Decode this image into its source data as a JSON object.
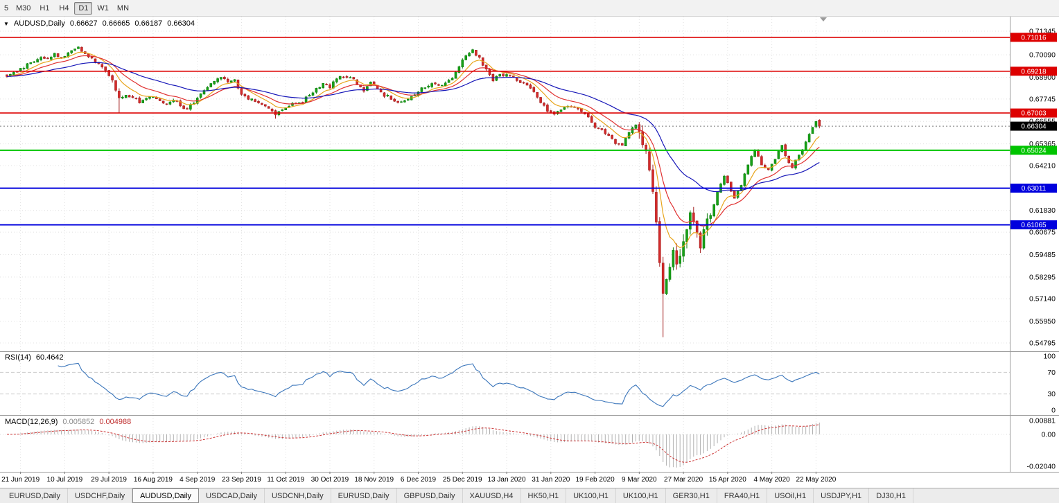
{
  "toolbar": {
    "buttons": [
      "5",
      "M30",
      "H1",
      "H4",
      "D1",
      "W1",
      "MN"
    ],
    "active": "D1"
  },
  "header": {
    "marker": "▼",
    "symbol_period": "AUDUSD,Daily",
    "open": "0.66627",
    "high": "0.66665",
    "low": "0.66187",
    "close": "0.66304"
  },
  "chart_data": {
    "type": "candlestick",
    "symbol": "AUDUSD",
    "timeframe": "Daily",
    "visible_ohlc": {
      "open": 0.66627,
      "high": 0.66665,
      "low": 0.66187,
      "close": 0.66304
    },
    "current_price": 0.66304,
    "price_range": {
      "top": 0.71345,
      "bottom": 0.54795
    },
    "bar_count": 240,
    "bar_spacing_px": 4.905,
    "y_axis_labels": [
      "0.71345",
      "0.70090",
      "0.68900",
      "0.67745",
      "0.66555",
      "0.65365",
      "0.64210",
      "0.61830",
      "0.60675",
      "0.59485",
      "0.58295",
      "0.57140",
      "0.55950",
      "0.54795"
    ],
    "x_axis_dates": [
      "21 Jun 2019",
      "10 Jul 2019",
      "29 Jul 2019",
      "16 Aug 2019",
      "4 Sep 2019",
      "23 Sep 2019",
      "11 Oct 2019",
      "30 Oct 2019",
      "18 Nov 2019",
      "6 Dec 2019",
      "25 Dec 2019",
      "13 Jan 2020",
      "31 Jan 2020",
      "19 Feb 2020",
      "9 Mar 2020",
      "27 Mar 2020",
      "15 Apr 2020",
      "4 May 2020",
      "22 May 2020"
    ],
    "hlines": [
      {
        "price": 0.71016,
        "color": "#dd0000",
        "width": 1.6
      },
      {
        "price": 0.69218,
        "color": "#dd0000",
        "width": 1.6
      },
      {
        "price": 0.67003,
        "color": "#dd0000",
        "width": 1.6
      },
      {
        "price": 0.65024,
        "color": "#00c400",
        "width": 2
      },
      {
        "price": 0.63011,
        "color": "#0000dd",
        "width": 2
      },
      {
        "price": 0.61065,
        "color": "#0000dd",
        "width": 2
      }
    ],
    "badges": [
      {
        "text": "0.71016",
        "color": "#dd0000"
      },
      {
        "text": "0.69218",
        "color": "#dd0000"
      },
      {
        "text": "0.67003",
        "color": "#dd0000"
      },
      {
        "text": "0.66304",
        "color": "#000000"
      },
      {
        "text": "0.65024",
        "color": "#00c400"
      },
      {
        "text": "0.63011",
        "color": "#0000dd"
      },
      {
        "text": "0.61065",
        "color": "#0000dd"
      }
    ],
    "moving_averages": [
      {
        "period": 8,
        "color": "#e8a51c"
      },
      {
        "period": 16,
        "color": "#e03131"
      },
      {
        "period": 40,
        "color": "#1717b8"
      }
    ],
    "indicators": {
      "rsi": {
        "label": "RSI(14)",
        "display_value": "60.4642",
        "period": 14,
        "levels": [
          100,
          70,
          30,
          0
        ],
        "color": "#3b76bb"
      },
      "macd": {
        "label": "MACD(12,26,9)",
        "display_values": [
          "0.005852",
          "0.004988"
        ],
        "fast": 12,
        "slow": 26,
        "signal": 9,
        "axis_labels": [
          "0.00881",
          "0.00",
          "-0.02040"
        ],
        "hist_color": "#b0b0b0",
        "signal_color": "#cc3333"
      }
    },
    "wick_lows": {
      "33": 0.67,
      "79": 0.667,
      "193": 0.551
    },
    "path_anchors": [
      [
        0,
        0.69
      ],
      [
        4,
        0.693
      ],
      [
        7,
        0.697
      ],
      [
        10,
        0.7
      ],
      [
        12,
        0.6985
      ],
      [
        14,
        0.7015
      ],
      [
        16,
        0.699
      ],
      [
        19,
        0.703
      ],
      [
        21,
        0.7045
      ],
      [
        23,
        0.702
      ],
      [
        25,
        0.6985
      ],
      [
        27,
        0.696
      ],
      [
        29,
        0.6925
      ],
      [
        31,
        0.6875
      ],
      [
        33,
        0.6775
      ],
      [
        35,
        0.6795
      ],
      [
        37,
        0.6785
      ],
      [
        39,
        0.676
      ],
      [
        41,
        0.6775
      ],
      [
        43,
        0.6785
      ],
      [
        45,
        0.6765
      ],
      [
        47,
        0.6755
      ],
      [
        49,
        0.6775
      ],
      [
        51,
        0.674
      ],
      [
        53,
        0.672
      ],
      [
        55,
        0.676
      ],
      [
        57,
        0.68
      ],
      [
        59,
        0.6835
      ],
      [
        61,
        0.6865
      ],
      [
        63,
        0.6885
      ],
      [
        65,
        0.687
      ],
      [
        67,
        0.6875
      ],
      [
        69,
        0.68
      ],
      [
        71,
        0.678
      ],
      [
        73,
        0.676
      ],
      [
        75,
        0.6745
      ],
      [
        77,
        0.672
      ],
      [
        79,
        0.6695
      ],
      [
        81,
        0.6715
      ],
      [
        83,
        0.674
      ],
      [
        85,
        0.6755
      ],
      [
        87,
        0.676
      ],
      [
        89,
        0.68
      ],
      [
        91,
        0.683
      ],
      [
        93,
        0.685
      ],
      [
        95,
        0.684
      ],
      [
        97,
        0.688
      ],
      [
        99,
        0.6895
      ],
      [
        101,
        0.689
      ],
      [
        103,
        0.686
      ],
      [
        105,
        0.682
      ],
      [
        107,
        0.686
      ],
      [
        109,
        0.683
      ],
      [
        111,
        0.6795
      ],
      [
        113,
        0.678
      ],
      [
        115,
        0.676
      ],
      [
        117,
        0.6765
      ],
      [
        119,
        0.6785
      ],
      [
        121,
        0.682
      ],
      [
        123,
        0.684
      ],
      [
        125,
        0.6855
      ],
      [
        127,
        0.684
      ],
      [
        129,
        0.6865
      ],
      [
        131,
        0.6885
      ],
      [
        133,
        0.695
      ],
      [
        135,
        0.7
      ],
      [
        137,
        0.703
      ],
      [
        139,
        0.699
      ],
      [
        141,
        0.693
      ],
      [
        143,
        0.6875
      ],
      [
        145,
        0.69
      ],
      [
        147,
        0.6905
      ],
      [
        149,
        0.689
      ],
      [
        151,
        0.6865
      ],
      [
        153,
        0.6845
      ],
      [
        155,
        0.682
      ],
      [
        157,
        0.676
      ],
      [
        159,
        0.671
      ],
      [
        161,
        0.669
      ],
      [
        163,
        0.6715
      ],
      [
        165,
        0.674
      ],
      [
        167,
        0.6735
      ],
      [
        169,
        0.671
      ],
      [
        171,
        0.668
      ],
      [
        173,
        0.6625
      ],
      [
        175,
        0.6605
      ],
      [
        177,
        0.658
      ],
      [
        179,
        0.6545
      ],
      [
        181,
        0.6535
      ],
      [
        183,
        0.6605
      ],
      [
        185,
        0.664
      ],
      [
        186,
        0.658
      ],
      [
        188,
        0.649
      ],
      [
        190,
        0.629
      ],
      [
        191,
        0.612
      ],
      [
        192,
        0.589
      ],
      [
        193,
        0.574
      ],
      [
        194,
        0.58
      ],
      [
        196,
        0.597
      ],
      [
        197,
        0.589
      ],
      [
        199,
        0.603
      ],
      [
        201,
        0.617
      ],
      [
        203,
        0.6075
      ],
      [
        204,
        0.6
      ],
      [
        206,
        0.613
      ],
      [
        208,
        0.622
      ],
      [
        210,
        0.633
      ],
      [
        211,
        0.636
      ],
      [
        213,
        0.629
      ],
      [
        214,
        0.625
      ],
      [
        216,
        0.632
      ],
      [
        218,
        0.642
      ],
      [
        220,
        0.651
      ],
      [
        222,
        0.642
      ],
      [
        224,
        0.64
      ],
      [
        225,
        0.6425
      ],
      [
        227,
        0.65
      ],
      [
        228,
        0.653
      ],
      [
        230,
        0.643
      ],
      [
        231,
        0.6415
      ],
      [
        233,
        0.648
      ],
      [
        235,
        0.654
      ],
      [
        237,
        0.6625
      ],
      [
        238,
        0.666
      ],
      [
        239,
        0.66304
      ]
    ]
  },
  "tabbar": {
    "tabs": [
      "EURUSD,Daily",
      "USDCHF,Daily",
      "AUDUSD,Daily",
      "USDCAD,Daily",
      "USDCNH,Daily",
      "EURUSD,Daily",
      "GBPUSD,Daily",
      "XAUUSD,H4",
      "HK50,H1",
      "UK100,H1",
      "UK100,H1",
      "GER30,H1",
      "FRA40,H1",
      "USOil,H1",
      "USDJPY,H1",
      "DJ30,H1"
    ],
    "active_index": 2
  }
}
